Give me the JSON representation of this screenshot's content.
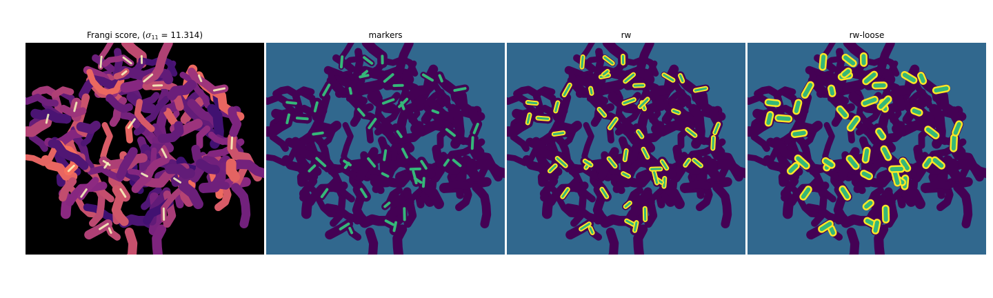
{
  "figure": {
    "panels": [
      {
        "title_prefix": "Frangi score, (",
        "title_symbol": "σ",
        "title_sub": "11",
        "title_value": " = 11.314)",
        "colormap": "magma"
      },
      {
        "title": "markers",
        "colormap": "viridis"
      },
      {
        "title": "rw",
        "colormap": "viridis"
      },
      {
        "title": "rw-loose",
        "colormap": "viridis"
      }
    ],
    "colors": {
      "frangi_background": "#000000",
      "frangi_low": "#3b0f70",
      "frangi_mid": "#8c2981",
      "frangi_high": "#fcfdbf",
      "label_background": "#31688e",
      "label_region": "#440154",
      "label_marker": "#35b779",
      "label_edge": "#fde725"
    }
  }
}
